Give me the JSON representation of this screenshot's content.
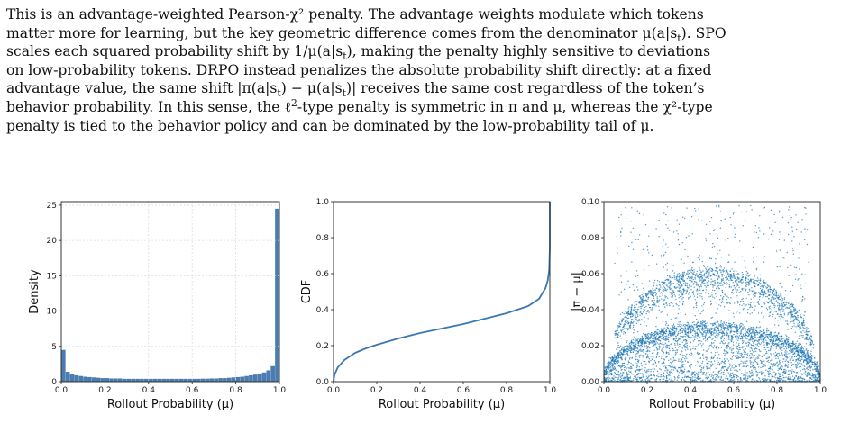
{
  "paragraph": {
    "lines": [
      [
        "This is an advantage-weighted Pearson-χ² penalty. The advantage weights modulate which tokens"
      ],
      [
        "matter more for learning, but the key geometric difference comes from the denominator μ(a|s",
        "t",
        "). SPO"
      ],
      [
        "scales each squared probability shift by 1/μ(a|s",
        "t",
        "), making the penalty highly sensitive to deviations"
      ],
      [
        "on low-probability tokens. DRPO instead penalizes the absolute probability shift directly: at a fixed"
      ],
      [
        "advantage value, the same shift |π(a|s",
        "t",
        ") − μ(a|s",
        "t",
        ")| receives the same cost regardless of the token’s"
      ],
      [
        "behavior probability. In this sense, the ℓ",
        "2",
        "-type penalty is symmetric in π and μ, whereas the χ²-type"
      ],
      [
        "penalty is tied to the behavior policy and can be dominated by the low-probability tail of μ."
      ]
    ]
  },
  "chart_data": [
    {
      "type": "bar",
      "xlabel": "Rollout Probability (μ)",
      "ylabel": "Density",
      "xlim": [
        0.0,
        1.0
      ],
      "ylim": [
        0,
        25.5
      ],
      "xticks": [
        "0.0",
        "0.2",
        "0.4",
        "0.6",
        "0.8",
        "1.0"
      ],
      "yticks": [
        "0",
        "5",
        "10",
        "15",
        "20",
        "25"
      ],
      "grid": true,
      "bin_width": 0.02,
      "bin_starts": [
        0.0,
        0.02,
        0.04,
        0.06,
        0.08,
        0.1,
        0.12,
        0.14,
        0.16,
        0.18,
        0.2,
        0.22,
        0.24,
        0.26,
        0.28,
        0.3,
        0.32,
        0.34,
        0.36,
        0.38,
        0.4,
        0.42,
        0.44,
        0.46,
        0.48,
        0.5,
        0.52,
        0.54,
        0.56,
        0.58,
        0.6,
        0.62,
        0.64,
        0.66,
        0.68,
        0.7,
        0.72,
        0.74,
        0.76,
        0.78,
        0.8,
        0.82,
        0.84,
        0.86,
        0.88,
        0.9,
        0.92,
        0.94,
        0.96,
        0.98
      ],
      "values": [
        4.5,
        1.4,
        1.1,
        0.9,
        0.8,
        0.7,
        0.65,
        0.6,
        0.55,
        0.5,
        0.5,
        0.45,
        0.45,
        0.45,
        0.4,
        0.4,
        0.4,
        0.4,
        0.4,
        0.4,
        0.4,
        0.4,
        0.4,
        0.4,
        0.4,
        0.4,
        0.4,
        0.4,
        0.4,
        0.4,
        0.4,
        0.4,
        0.42,
        0.42,
        0.45,
        0.45,
        0.5,
        0.5,
        0.55,
        0.6,
        0.65,
        0.7,
        0.8,
        0.9,
        1.0,
        1.1,
        1.3,
        1.6,
        2.2,
        24.5
      ],
      "color": "#4a7cb0"
    },
    {
      "type": "line",
      "xlabel": "Rollout Probability (μ)",
      "ylabel": "CDF",
      "xlim": [
        0.0,
        1.0
      ],
      "ylim": [
        0.0,
        1.0
      ],
      "xticks": [
        "0.0",
        "0.2",
        "0.4",
        "0.6",
        "0.8",
        "1.0"
      ],
      "yticks": [
        "0.0",
        "0.2",
        "0.4",
        "0.6",
        "0.8",
        "1.0"
      ],
      "grid": false,
      "x": [
        0.0,
        0.005,
        0.02,
        0.05,
        0.1,
        0.15,
        0.2,
        0.3,
        0.4,
        0.5,
        0.6,
        0.7,
        0.8,
        0.9,
        0.95,
        0.98,
        0.99,
        0.997,
        1.0,
        1.0
      ],
      "y": [
        0.0,
        0.04,
        0.08,
        0.12,
        0.16,
        0.185,
        0.205,
        0.24,
        0.27,
        0.295,
        0.32,
        0.35,
        0.38,
        0.42,
        0.46,
        0.52,
        0.56,
        0.62,
        0.75,
        1.0
      ],
      "color": "#3a78b0"
    },
    {
      "type": "scatter",
      "xlabel": "Rollout Probability (μ)",
      "ylabel": "|π − μ|",
      "xlim": [
        0.0,
        1.0
      ],
      "ylim": [
        0.0,
        0.1
      ],
      "xticks": [
        "0.0",
        "0.2",
        "0.4",
        "0.6",
        "0.8",
        "1.0"
      ],
      "yticks": [
        "0.00",
        "0.02",
        "0.04",
        "0.06",
        "0.08",
        "0.10"
      ],
      "grid": false,
      "color": "#1f77b4",
      "bands": [
        {
          "peak": 0.063,
          "x_from": 0.05,
          "x_to": 0.97
        },
        {
          "peak": 0.032,
          "x_from": 0.0,
          "x_to": 1.0
        }
      ]
    }
  ]
}
